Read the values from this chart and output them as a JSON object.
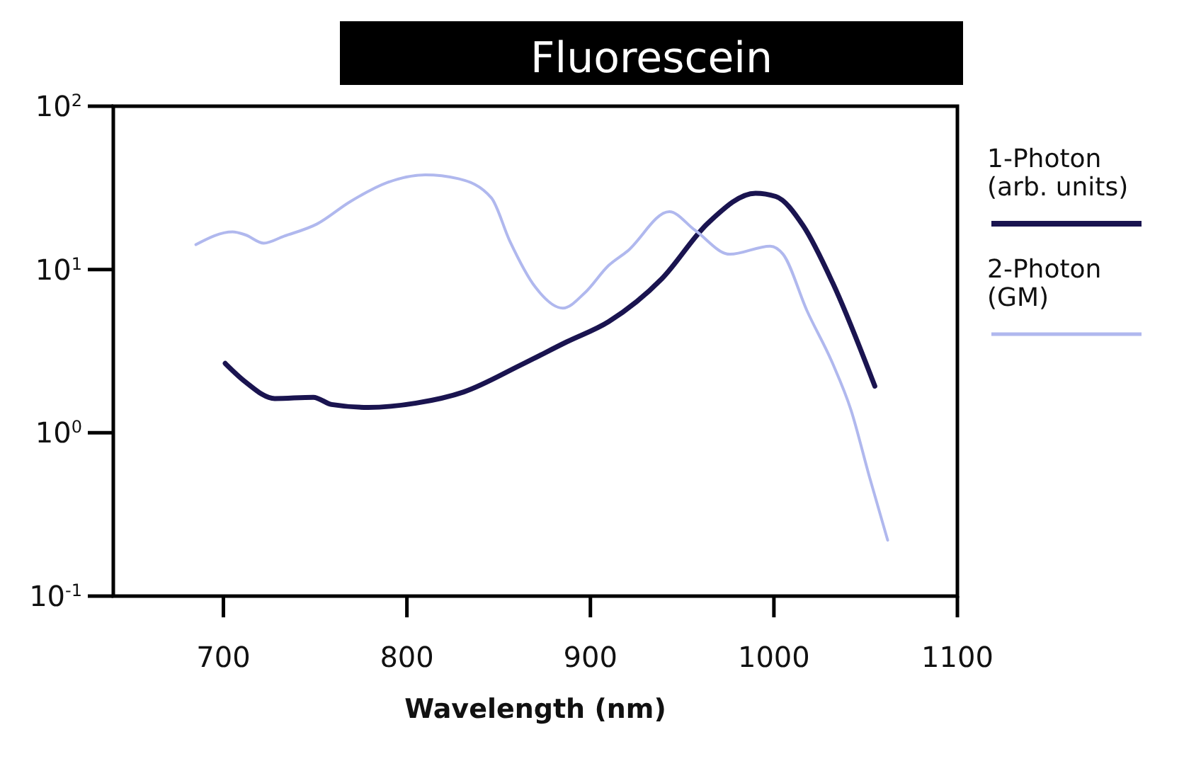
{
  "chart_data": {
    "type": "line",
    "title": "Fluorescein",
    "xlabel": "Wavelength (nm)",
    "log": "y",
    "xlim": [
      640,
      1100
    ],
    "ylim": [
      0.1,
      100
    ],
    "xticks": [
      700,
      800,
      900,
      1000,
      1100
    ],
    "yticks": [
      {
        "value": 0.1,
        "label": "10$^{-1}$"
      },
      {
        "value": 1,
        "label": "10$^{0}$"
      },
      {
        "value": 10,
        "label": "10$^{1}$"
      },
      {
        "value": 100,
        "label": "10$^{2}$"
      }
    ],
    "legend": "right",
    "grid": false,
    "line_style": "solid",
    "marker": "none",
    "series": [
      {
        "name": "1-Photon (arb. units)",
        "color": "#1a1450",
        "x": [
          701,
          712,
          728,
          749,
          759,
          779,
          805,
          831,
          862,
          887,
          910,
          939,
          964,
          990,
          1001,
          1016,
          1032,
          1055
        ],
        "values": [
          2.66,
          2.05,
          1.62,
          1.65,
          1.49,
          1.43,
          1.52,
          1.78,
          2.6,
          3.6,
          4.8,
          8.8,
          19.2,
          29.3,
          28,
          18.5,
          8.3,
          1.93
        ]
      },
      {
        "name": "2-Photon (GM)",
        "color": "#b0b8ee",
        "x": [
          685,
          705,
          712,
          722,
          733,
          751,
          769,
          789,
          810,
          828,
          846,
          856,
          870,
          885,
          897,
          910,
          920,
          943,
          957,
          976,
          998,
          1005,
          1018,
          1032,
          1042,
          1052,
          1062
        ],
        "values": [
          14.2,
          17,
          16.3,
          14.5,
          16,
          19,
          26,
          34,
          38,
          36,
          27.5,
          15,
          7.8,
          5.8,
          7.2,
          10.6,
          12.9,
          22.6,
          17.4,
          12.4,
          13.9,
          12.4,
          5.6,
          2.66,
          1.38,
          0.54,
          0.22
        ]
      }
    ]
  }
}
